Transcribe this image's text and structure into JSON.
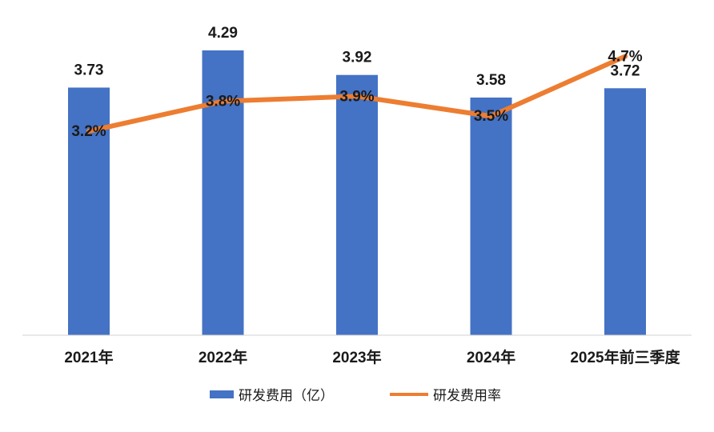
{
  "chart_data": {
    "type": "bar",
    "categories": [
      "2021年",
      "2022年",
      "2023年",
      "2024年",
      "2025年前三季度"
    ],
    "series": [
      {
        "name": "研发费用（亿）",
        "type": "bar",
        "axis": "left",
        "color": "#4472C4",
        "values": [
          3.73,
          4.29,
          3.92,
          3.58,
          3.72
        ],
        "labels": [
          "3.73",
          "4.29",
          "3.92",
          "3.58",
          "3.72"
        ]
      },
      {
        "name": "研发费用率",
        "type": "line",
        "axis": "right",
        "color": "#ED7D31",
        "values": [
          3.2,
          3.8,
          3.9,
          3.5,
          4.7
        ],
        "labels": [
          "3.2%",
          "3.8%",
          "3.9%",
          "3.5%",
          "4.7%"
        ]
      }
    ],
    "grid": false,
    "legend_position": "bottom"
  }
}
